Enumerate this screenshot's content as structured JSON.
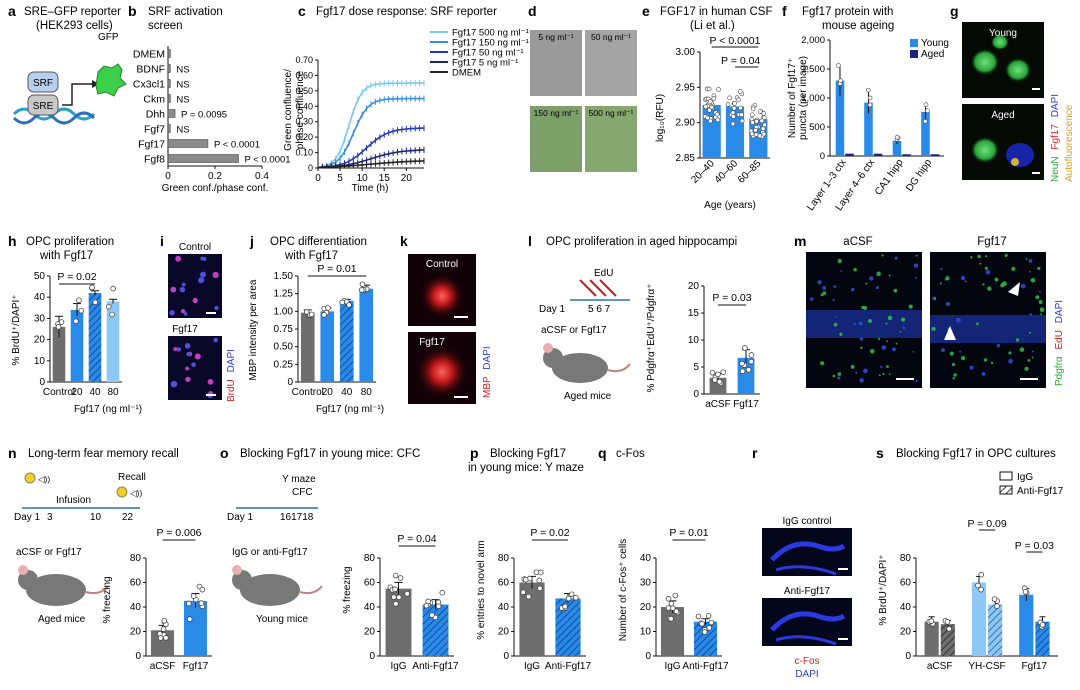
{
  "panels": {
    "a": {
      "letter": "a",
      "title_line1": "SRE–GFP reporter",
      "title_line2": "(HEK293 cells)",
      "srf": "SRF",
      "sre": "SRE",
      "gfp": "GFP"
    },
    "b": {
      "letter": "b",
      "title_line1": "SRF activation",
      "title_line2": "screen",
      "xlabel": "Green conf./phase conf.",
      "xticks": [
        "0",
        "0.2",
        "0.4"
      ]
    },
    "c": {
      "letter": "c",
      "title": "Fgf17 dose response: SRF reporter",
      "xlabel": "Time (h)",
      "ylabel_line1": "Green confluence/",
      "ylabel_line2": "phase confluence",
      "xticks": [
        "0",
        "5",
        "10",
        "15",
        "20"
      ],
      "yticks": [
        "0",
        "0.10",
        "0.20",
        "0.30",
        "0.40",
        "0.50",
        "0.60",
        "0.70"
      ]
    },
    "d": {
      "letter": "d",
      "labels": [
        "5 ng ml⁻¹",
        "50 ng ml⁻¹",
        "150 ng ml⁻¹",
        "500 ng ml⁻¹"
      ]
    },
    "e": {
      "letter": "e",
      "title_line1": "FGF17 in human CSF",
      "title_line2": "(Li et al.)",
      "ylabel": "log₁₀(RFU)",
      "xlabel": "Age (years)",
      "yticks": [
        "2.85",
        "2.90",
        "2.95",
        "3.00"
      ],
      "p1": "P < 0.0001",
      "p2": "P = 0.04"
    },
    "f": {
      "letter": "f",
      "title_line1": "Fgf17 protein with",
      "title_line2": "mouse ageing",
      "ylabel_line1": "Number of Fgf17⁺",
      "ylabel_line2": "puncta (per image)",
      "yticks": [
        "0",
        "500",
        "1,000",
        "1,500",
        "2,000"
      ]
    },
    "g": {
      "letter": "g",
      "young": "Young",
      "aged": "Aged",
      "side_neun": "NeuN",
      "side_fgf17": "Fgf17",
      "side_dapi": "DAPI",
      "side_auto": "Autofluorescence"
    },
    "h": {
      "letter": "h",
      "title_line1": "OPC proliferation",
      "title_line2": "with Fgf17",
      "ylabel": "% BrdU⁺/DAPI⁺",
      "xlabel": "Fgf17 (ng ml⁻¹)",
      "yticks": [
        "0",
        "10",
        "20",
        "30",
        "40",
        "50"
      ],
      "p": "P = 0.02"
    },
    "i": {
      "letter": "i",
      "control": "Control",
      "fgf17": "Fgf17",
      "side_brdu": "BrdU",
      "side_dapi": "DAPI"
    },
    "j": {
      "letter": "j",
      "title_line1": "OPC differentiation",
      "title_line2": "with Fgf17",
      "ylabel": "MBP intensity per area",
      "xlabel": "Fgf17 (ng ml⁻¹)",
      "yticks": [
        "0",
        "0.25",
        "0.50",
        "0.75",
        "1.00",
        "1.25",
        "1.50"
      ],
      "p": "P = 0.01"
    },
    "k": {
      "letter": "k",
      "control": "Control",
      "fgf17": "Fgf17",
      "side_mbp": "MBP",
      "side_dapi": "DAPI"
    },
    "l": {
      "letter": "l",
      "title": "OPC proliferation in aged hippocampi",
      "edu": "EdU",
      "day1": "Day 1",
      "days": "5 6 7",
      "treat": "aCSF or Fgf17",
      "mice": "Aged mice",
      "ylabel": "% Pdgfrα⁺EdU⁺/Pdgfrα⁺",
      "yticks": [
        "0",
        "5",
        "10",
        "15",
        "20"
      ],
      "p": "P = 0.03"
    },
    "m": {
      "letter": "m",
      "acsf": "aCSF",
      "fgf17": "Fgf17",
      "side_pdgfra": "Pdgfrα",
      "side_edu": "EdU",
      "side_dapi": "DAPI"
    },
    "n": {
      "letter": "n",
      "title": "Long-term fear memory recall",
      "recall": "Recall",
      "infusion": "Infusion",
      "day1": "Day 1",
      "d3": "3",
      "d10": "10",
      "d22": "22",
      "treat": "aCSF or Fgf17",
      "mice": "Aged mice",
      "ylabel": "% freezing",
      "yticks": [
        "0",
        "20",
        "40",
        "60",
        "80"
      ],
      "p": "P = 0.006"
    },
    "o": {
      "letter": "o",
      "title": "Blocking Fgf17 in young mice: CFC",
      "ymaze": "Y maze",
      "cfc": "CFC",
      "day1": "Day 1",
      "days": "161718",
      "treat": "IgG or anti-Fgf17",
      "mice": "Young mice",
      "ylabel": "% freezing",
      "yticks": [
        "0",
        "20",
        "40",
        "60",
        "80"
      ],
      "p": "P = 0.04"
    },
    "p": {
      "letter": "p",
      "title_line1": "Blocking Fgf17",
      "title_line2": "in young mice: Y maze",
      "ylabel": "% entries to novel arm",
      "yticks": [
        "0",
        "20",
        "40",
        "60",
        "80"
      ],
      "p": "P = 0.02"
    },
    "q": {
      "letter": "q",
      "title": "c-Fos",
      "ylabel": "Number of c-Fos⁺ cells",
      "yticks": [
        "0",
        "10",
        "20",
        "30",
        "40"
      ],
      "p": "P = 0.01"
    },
    "r": {
      "letter": "r",
      "igg": "IgG control",
      "anti": "Anti-Fgf17",
      "cfos": "c-Fos",
      "dapi": "DAPI"
    },
    "s": {
      "letter": "s",
      "title": "Blocking Fgf17 in OPC cultures",
      "legend_igg": "IgG",
      "legend_anti": "Anti-Fgf17",
      "ylabel": "% BrdU⁺/DAPI⁺",
      "yticks": [
        "0",
        "20",
        "40",
        "60",
        "80"
      ],
      "p1": "P = 0.09",
      "p2": "P = 0.03"
    }
  },
  "chart_data": [
    {
      "panel": "b",
      "type": "bar",
      "orientation": "horizontal",
      "categories": [
        "DMEM",
        "BDNF",
        "Cx3cl1",
        "Ckm",
        "Dhh",
        "Fgf7",
        "Fgf17",
        "Fgf8"
      ],
      "values": [
        0.01,
        0.01,
        0.01,
        0.01,
        0.03,
        0.01,
        0.17,
        0.3
      ],
      "annotations": [
        "",
        "NS",
        "NS",
        "NS",
        "P = 0.0095",
        "NS",
        "P < 0.0001",
        "P < 0.0001"
      ],
      "xlim": [
        0,
        0.4
      ]
    },
    {
      "panel": "c",
      "type": "line",
      "xlim": [
        0,
        24
      ],
      "ylim": [
        0,
        0.7
      ],
      "series": [
        {
          "name": "Fgf17 500 ng ml⁻¹",
          "color": "#7ec8f0",
          "plateau": 0.55,
          "midpoint": 7,
          "rate": 0.7
        },
        {
          "name": "Fgf17 150 ng ml⁻¹",
          "color": "#3a8fe0",
          "plateau": 0.45,
          "midpoint": 8,
          "rate": 0.6
        },
        {
          "name": "Fgf17 50 ng ml⁻¹",
          "color": "#2238b8",
          "plateau": 0.26,
          "midpoint": 11,
          "rate": 0.4
        },
        {
          "name": "Fgf17 5 ng ml⁻¹",
          "color": "#1a237e",
          "plateau": 0.12,
          "midpoint": 12,
          "rate": 0.3
        },
        {
          "name": "DMEM",
          "color": "#222222",
          "plateau": 0.05,
          "midpoint": 12,
          "rate": 0.2
        }
      ]
    },
    {
      "panel": "e",
      "type": "bar",
      "categories": [
        "20–40",
        "40–60",
        "60–85"
      ],
      "values": [
        2.925,
        2.923,
        2.905
      ],
      "errors": [
        0.004,
        0.004,
        0.004
      ],
      "ylim": [
        2.85,
        3.0
      ],
      "colors": [
        "#2a8ae8",
        "#2a8ae8",
        "#2a8ae8"
      ],
      "n_points": [
        32,
        18,
        30
      ]
    },
    {
      "panel": "f",
      "type": "bar",
      "categories": [
        "Layer 1–3 ctx",
        "Layer 4–6 ctx",
        "CA1 hipp",
        "DG hipp"
      ],
      "series": [
        {
          "name": "Young",
          "color": "#2a8ae8",
          "values": [
            1300,
            920,
            260,
            760
          ]
        },
        {
          "name": "Aged",
          "color": "#1a237e",
          "values": [
            40,
            40,
            30,
            30
          ]
        }
      ],
      "ylim": [
        0,
        2000
      ]
    },
    {
      "panel": "h",
      "type": "bar",
      "categories": [
        "Control",
        "20",
        "40",
        "80"
      ],
      "values": [
        26,
        34,
        42,
        38
      ],
      "errors": [
        5,
        3,
        1,
        1
      ],
      "colors": [
        "#6e6e6e",
        "#2a8ae8",
        "#2a8ae8",
        "#8cc8f5"
      ],
      "hatched": [
        false,
        false,
        true,
        false
      ],
      "ylim": [
        0,
        50
      ]
    },
    {
      "panel": "j",
      "type": "bar",
      "categories": [
        "Control",
        "20",
        "40",
        "80"
      ],
      "values": [
        0.98,
        1.0,
        1.15,
        1.32
      ],
      "errors": [
        0.04,
        0.05,
        0.02,
        0.05
      ],
      "colors": [
        "#6e6e6e",
        "#2a8ae8",
        "#2a8ae8",
        "#2a8ae8"
      ],
      "hatched": [
        false,
        false,
        true,
        false
      ],
      "ylim": [
        0,
        1.5
      ]
    },
    {
      "panel": "l",
      "type": "bar",
      "categories": [
        "aCSF",
        "Fgf17"
      ],
      "values": [
        3,
        6.7
      ],
      "errors": [
        0.8,
        1.5
      ],
      "colors": [
        "#6e6e6e",
        "#2a8ae8"
      ],
      "ylim": [
        0,
        20
      ]
    },
    {
      "panel": "n",
      "type": "bar",
      "categories": [
        "aCSF",
        "Fgf17"
      ],
      "values": [
        21,
        45
      ],
      "errors": [
        4,
        6
      ],
      "colors": [
        "#6e6e6e",
        "#2a8ae8"
      ],
      "ylim": [
        0,
        80
      ]
    },
    {
      "panel": "o",
      "type": "bar",
      "categories": [
        "IgG",
        "Anti-Fgf17"
      ],
      "values": [
        55,
        42
      ],
      "errors": [
        5,
        4
      ],
      "colors": [
        "#6e6e6e",
        "#2a8ae8"
      ],
      "hatched": [
        false,
        true
      ],
      "ylim": [
        0,
        80
      ]
    },
    {
      "panel": "p",
      "type": "bar",
      "categories": [
        "IgG",
        "Anti-Fgf17"
      ],
      "values": [
        60,
        47
      ],
      "errors": [
        5,
        4
      ],
      "colors": [
        "#6e6e6e",
        "#2a8ae8"
      ],
      "hatched": [
        false,
        true
      ],
      "ylim": [
        0,
        80
      ]
    },
    {
      "panel": "q",
      "type": "bar",
      "categories": [
        "IgG",
        "Anti-Fgf17"
      ],
      "values": [
        20,
        14
      ],
      "errors": [
        2.5,
        1.2
      ],
      "colors": [
        "#6e6e6e",
        "#2a8ae8"
      ],
      "hatched": [
        false,
        true
      ],
      "ylim": [
        0,
        40
      ]
    },
    {
      "panel": "s",
      "type": "bar",
      "categories": [
        "aCSF",
        "YH-CSF",
        "Fgf17"
      ],
      "series": [
        {
          "name": "IgG",
          "values": [
            28,
            60,
            50
          ],
          "errors": [
            4,
            5,
            5
          ]
        },
        {
          "name": "Anti-Fgf17",
          "values": [
            26,
            42,
            28
          ],
          "errors": [
            3,
            3,
            4
          ]
        }
      ],
      "colors": [
        "#6e6e6e",
        "#8cc8f5",
        "#2a8ae8"
      ],
      "ylim": [
        0,
        80
      ]
    }
  ]
}
